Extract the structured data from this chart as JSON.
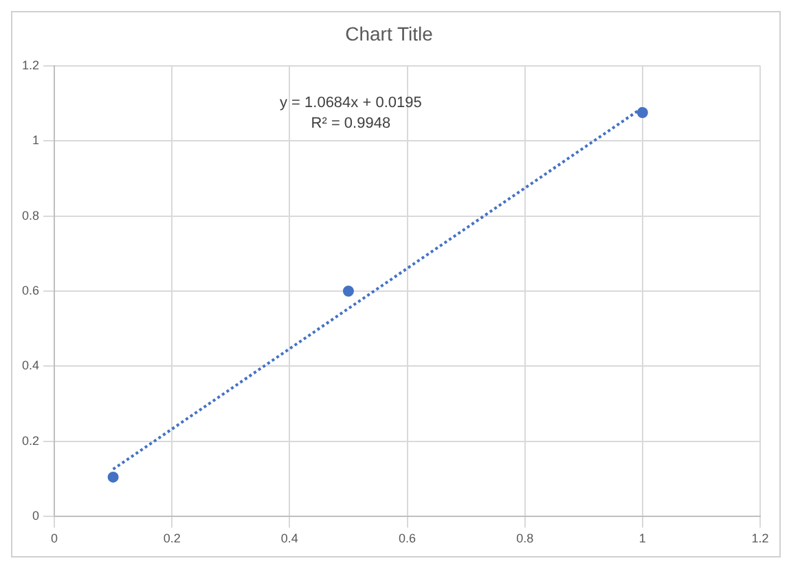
{
  "chart_data": {
    "type": "scatter",
    "title": "Chart Title",
    "series": [
      {
        "type": "scatter",
        "color": "#4472c4",
        "x": [
          0.1,
          0.5,
          1
        ],
        "values": [
          0.105,
          0.6,
          1.075
        ],
        "marker": "circle"
      },
      {
        "type": "line",
        "color": "#4472c4",
        "x": [
          0.1,
          1
        ],
        "values": [
          0.126,
          1.088
        ],
        "marker": "none",
        "line_style": "dotted"
      }
    ],
    "annotations": [
      "y = 1.0684x + 0.0195",
      "R² = 0.9948"
    ],
    "xlim": [
      0,
      1.2
    ],
    "xticks": [
      0,
      0.2,
      0.4,
      0.6,
      0.8,
      1,
      1.2
    ],
    "ylim": [
      0,
      1.2
    ],
    "yticks": [
      0,
      0.2,
      0.4,
      0.6,
      0.8,
      1,
      1.2
    ],
    "grid": true,
    "legend": false
  }
}
